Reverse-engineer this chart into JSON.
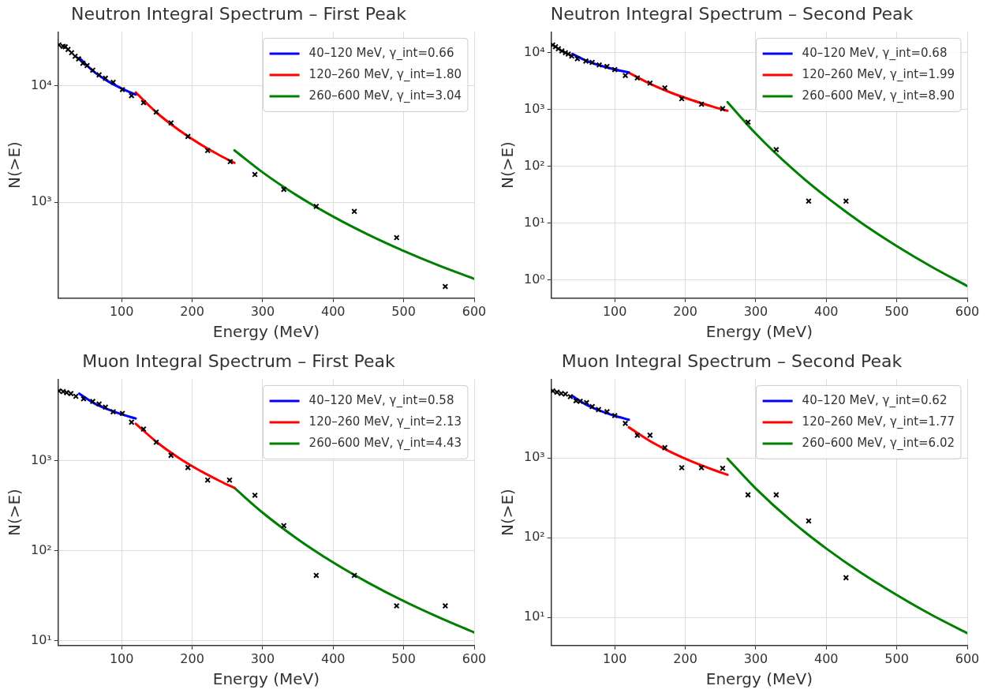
{
  "chart_data": [
    {
      "type": "scatter",
      "title": "Neutron Integral Spectrum – First Peak",
      "xlabel": "Energy (MeV)",
      "ylabel": "N(>E)",
      "log": "y",
      "grid": true,
      "legend": "top right",
      "xlim": [
        10,
        600
      ],
      "xticks": [
        100,
        200,
        300,
        400,
        500,
        600
      ],
      "ylim": [
        150,
        29000
      ],
      "yticks": [
        {
          "value": 1000,
          "label": "10³"
        },
        {
          "value": 10000,
          "label": "10⁴"
        }
      ],
      "series": [
        {
          "type": "scatter",
          "marker": "cross",
          "color": "#000000",
          "x": [
            11,
            17,
            20,
            24,
            29,
            34,
            39,
            45,
            51,
            59,
            68,
            77,
            88,
            101,
            114,
            131,
            149,
            170,
            194,
            222,
            254,
            289,
            330,
            376,
            430,
            490,
            559
          ],
          "values": [
            22400,
            21800,
            21600,
            20500,
            19200,
            17900,
            17000,
            15600,
            14900,
            13600,
            12400,
            11600,
            10700,
            9270,
            8230,
            7160,
            5950,
            4800,
            3670,
            2780,
            2230,
            1730,
            1290,
            921,
            835,
            497,
            189
          ]
        },
        {
          "type": "line",
          "name": "40–120 MeV, γ_int=0.66",
          "color": "#0000ff",
          "x": [
            40,
            60,
            80,
            100,
            120
          ],
          "values": [
            17350,
            13280,
            10980,
            9480,
            8400
          ]
        },
        {
          "type": "line",
          "name": "120–260 MeV, γ_int=1.80",
          "color": "#ff0000",
          "x": [
            120,
            150,
            180,
            210,
            240,
            260
          ],
          "values": [
            8750,
            5850,
            4220,
            3190,
            2510,
            2180
          ]
        },
        {
          "type": "line",
          "name": "260–600 MeV, γ_int=3.04",
          "color": "#008000",
          "x": [
            260,
            300,
            350,
            400,
            450,
            500,
            550,
            600
          ],
          "values": [
            2790,
            1805,
            1130,
            753,
            526,
            382,
            286,
            220
          ]
        }
      ]
    },
    {
      "type": "scatter",
      "title": "Neutron Integral Spectrum – Second Peak",
      "xlabel": "Energy (MeV)",
      "ylabel": "N(>E)",
      "log": "y",
      "grid": true,
      "legend": "top right",
      "xlim": [
        10,
        600
      ],
      "xticks": [
        100,
        200,
        300,
        400,
        500,
        600
      ],
      "ylim": [
        0.48,
        23000
      ],
      "yticks": [
        {
          "value": 1,
          "label": "10⁰"
        },
        {
          "value": 10,
          "label": "10¹"
        },
        {
          "value": 100,
          "label": "10²"
        },
        {
          "value": 1000,
          "label": "10³"
        },
        {
          "value": 10000,
          "label": "10⁴"
        }
      ],
      "series": [
        {
          "type": "scatter",
          "marker": "cross",
          "color": "#000000",
          "x": [
            12,
            16,
            20,
            25,
            30,
            34,
            39,
            47,
            59,
            68,
            78,
            89,
            100,
            115,
            132,
            150,
            171,
            195,
            223,
            253,
            289,
            329,
            375,
            428
          ],
          "values": [
            13550,
            12600,
            11600,
            10640,
            9890,
            9390,
            8640,
            7770,
            7060,
            6700,
            6040,
            5670,
            5000,
            3930,
            3570,
            2890,
            2390,
            1540,
            1230,
            1030,
            597,
            196,
            24.4,
            24.4
          ]
        },
        {
          "type": "line",
          "name": "40–120 MeV, γ_int=0.68",
          "color": "#0000ff",
          "x": [
            40,
            60,
            80,
            100,
            120
          ],
          "values": [
            9400,
            7130,
            5870,
            5040,
            4460
          ]
        },
        {
          "type": "line",
          "name": "120–260 MeV, γ_int=1.99",
          "color": "#ff0000",
          "x": [
            120,
            150,
            180,
            210,
            240,
            260
          ],
          "values": [
            4400,
            2820,
            1960,
            1445,
            1108,
            945
          ]
        },
        {
          "type": "line",
          "name": "260–600 MeV, γ_int=8.90",
          "color": "#008000",
          "x": [
            260,
            300,
            350,
            400,
            450,
            500,
            550,
            600
          ],
          "values": [
            1340,
            375,
            95.1,
            29.0,
            10.1,
            3.97,
            1.7,
            0.785
          ]
        }
      ]
    },
    {
      "type": "scatter",
      "title": "Muon Integral Spectrum – First Peak",
      "xlabel": "Energy (MeV)",
      "ylabel": "N(>E)",
      "log": "y",
      "grid": true,
      "legend": "top right",
      "xlim": [
        10,
        600
      ],
      "xticks": [
        100,
        200,
        300,
        400,
        500,
        600
      ],
      "ylim": [
        8.8,
        8100
      ],
      "yticks": [
        {
          "value": 10,
          "label": "10¹"
        },
        {
          "value": 100,
          "label": "10²"
        },
        {
          "value": 1000,
          "label": "10³"
        }
      ],
      "series": [
        {
          "type": "scatter",
          "marker": "cross",
          "color": "#000000",
          "x": [
            11,
            17,
            22,
            28,
            35,
            46,
            59,
            68,
            77,
            88,
            101,
            114,
            131,
            149,
            170,
            194,
            222,
            253,
            289,
            330,
            376,
            430,
            490,
            559
          ],
          "values": [
            5990,
            5900,
            5750,
            5600,
            5230,
            4900,
            4580,
            4290,
            3960,
            3510,
            3370,
            2690,
            2260,
            1610,
            1150,
            841,
            611,
            611,
            414,
            190,
            53.1,
            53.1,
            24.3,
            24.3
          ]
        },
        {
          "type": "line",
          "name": "40–120 MeV, γ_int=0.58",
          "color": "#0000ff",
          "x": [
            40,
            60,
            80,
            100,
            120
          ],
          "values": [
            5600,
            4420,
            3750,
            3290,
            2960
          ]
        },
        {
          "type": "line",
          "name": "120–260 MeV, γ_int=2.13",
          "color": "#ff0000",
          "x": [
            120,
            150,
            180,
            210,
            240,
            260
          ],
          "values": [
            2590,
            1610,
            1092,
            786,
            592,
            499
          ]
        },
        {
          "type": "line",
          "name": "260–600 MeV, γ_int=4.43",
          "color": "#008000",
          "x": [
            260,
            300,
            350,
            400,
            450,
            500,
            550,
            600
          ],
          "values": [
            499,
            265,
            134,
            74.0,
            43.9,
            27.5,
            18.1,
            12.3
          ]
        }
      ]
    },
    {
      "type": "scatter",
      "title": "Muon Integral Spectrum – Second Peak",
      "xlabel": "Energy (MeV)",
      "ylabel": "N(>E)",
      "log": "y",
      "grid": true,
      "legend": "top right",
      "xlim": [
        10,
        600
      ],
      "xticks": [
        100,
        200,
        300,
        400,
        500,
        600
      ],
      "ylim": [
        4.45,
        9660
      ],
      "yticks": [
        {
          "value": 10,
          "label": "10¹"
        },
        {
          "value": 100,
          "label": "10²"
        },
        {
          "value": 1000,
          "label": "10³"
        }
      ],
      "series": [
        {
          "type": "scatter",
          "marker": "cross",
          "color": "#000000",
          "x": [
            12,
            18,
            24,
            30,
            37,
            45,
            51,
            60,
            68,
            77,
            89,
            100,
            115,
            132,
            150,
            171,
            195,
            223,
            253,
            289,
            329,
            375,
            428
          ],
          "values": [
            6890,
            6640,
            6400,
            6300,
            5840,
            5190,
            5110,
            4920,
            4390,
            4020,
            3780,
            3380,
            2700,
            1920,
            1920,
            1340,
            752,
            752,
            740,
            344,
            344,
            162,
            31.5
          ]
        },
        {
          "type": "line",
          "name": "40–120 MeV, γ_int=0.62",
          "color": "#0000ff",
          "x": [
            40,
            60,
            80,
            100,
            120
          ],
          "values": [
            5930,
            4610,
            3860,
            3360,
            3000
          ]
        },
        {
          "type": "line",
          "name": "120–260 MeV, γ_int=1.77",
          "color": "#ff0000",
          "x": [
            120,
            150,
            180,
            210,
            240,
            260
          ],
          "values": [
            2410,
            1624,
            1176,
            895,
            707,
            613
          ]
        },
        {
          "type": "line",
          "name": "260–600 MeV, γ_int=6.02",
          "color": "#008000",
          "x": [
            260,
            300,
            350,
            400,
            450,
            500,
            550,
            600
          ],
          "values": [
            977,
            413,
            163,
            73.1,
            35.9,
            19.1,
            10.7,
            6.36
          ]
        }
      ]
    }
  ]
}
